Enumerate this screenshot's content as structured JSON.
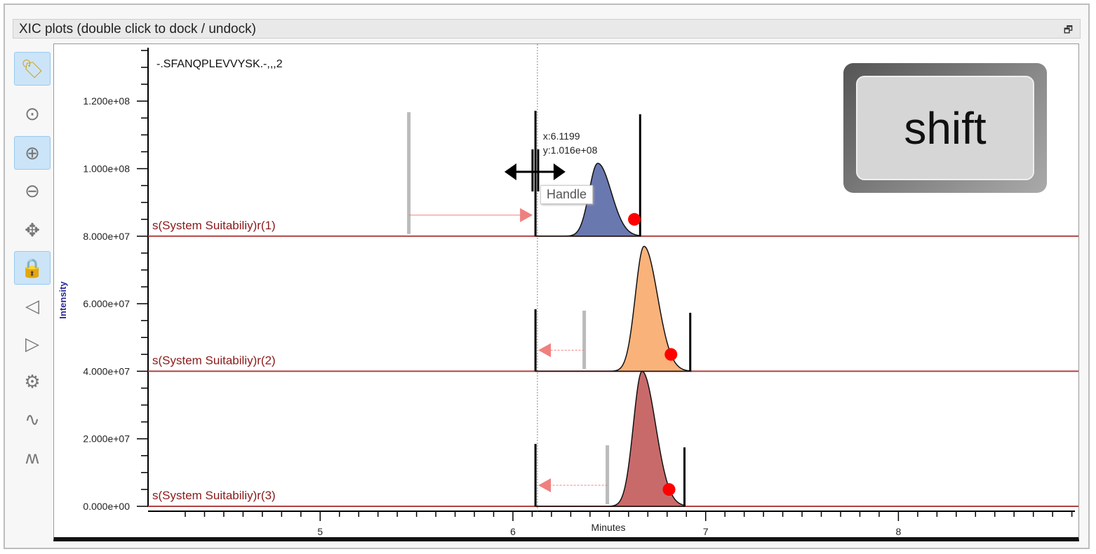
{
  "window": {
    "title": "XIC plots (double click to dock / undock)",
    "dock_icon": "restore-window-icon"
  },
  "toolbar": [
    {
      "name": "label-tag-icon",
      "active": true
    },
    {
      "name": "zoom-reset-icon",
      "active": false
    },
    {
      "name": "zoom-in-icon",
      "active": true
    },
    {
      "name": "zoom-out-icon",
      "active": false
    },
    {
      "name": "pan-move-icon",
      "active": false
    },
    {
      "name": "lock-icon",
      "active": true
    },
    {
      "name": "zoom-previous-icon",
      "active": false
    },
    {
      "name": "zoom-next-icon",
      "active": false
    },
    {
      "name": "settings-gear-icon",
      "active": false
    },
    {
      "name": "single-peak-icon",
      "active": false
    },
    {
      "name": "multi-peak-icon",
      "active": false
    }
  ],
  "plot": {
    "peptide": "-.SFANQPLEVVYSK.-,,,2",
    "cursor": {
      "x_label": "x:6.1199",
      "y_label": "y:1.016e+08"
    },
    "tooltip": "Handle",
    "key_overlay": "shift"
  },
  "chart_data": {
    "type": "area",
    "xlabel": "Minutes",
    "ylabel": "Intensity",
    "xlim": [
      4.2,
      8.93
    ],
    "ylim": [
      0,
      136000000.0
    ],
    "xticks": [
      5,
      6,
      7,
      8
    ],
    "yticks": [
      {
        "v": 0,
        "label": "0.000e+00"
      },
      {
        "v": 20000000.0,
        "label": "2.000e+07"
      },
      {
        "v": 40000000.0,
        "label": "4.000e+07"
      },
      {
        "v": 60000000.0,
        "label": "6.000e+07"
      },
      {
        "v": 80000000.0,
        "label": "8.000e+07"
      },
      {
        "v": 100000000.0,
        "label": "1.000e+08"
      },
      {
        "v": 120000000.0,
        "label": "1.200e+08"
      }
    ],
    "cursor_x": 6.1199,
    "series": [
      {
        "name": "s(System Suitabiliy)r(1)",
        "base": 80000000.0,
        "apex_rt": 6.44,
        "apex": 101600000.0,
        "color": "#6a78b0",
        "start": 6.117,
        "end": 6.66,
        "ref_rt": 5.46,
        "point_rt": 6.63,
        "arrow": "right"
      },
      {
        "name": "s(System Suitabiliy)r(2)",
        "base": 40000000.0,
        "apex_rt": 6.68,
        "apex": 77000000.0,
        "color": "#f9b27a",
        "start": 6.117,
        "end": 6.92,
        "ref_rt": 6.37,
        "point_rt": 6.82,
        "arrow": "left"
      },
      {
        "name": "s(System Suitabiliy)r(3)",
        "base": 0,
        "apex_rt": 6.67,
        "apex": 40000000.0,
        "color": "#c96a6a",
        "start": 6.117,
        "end": 6.89,
        "ref_rt": 6.49,
        "point_rt": 6.81,
        "arrow": "left"
      }
    ]
  }
}
